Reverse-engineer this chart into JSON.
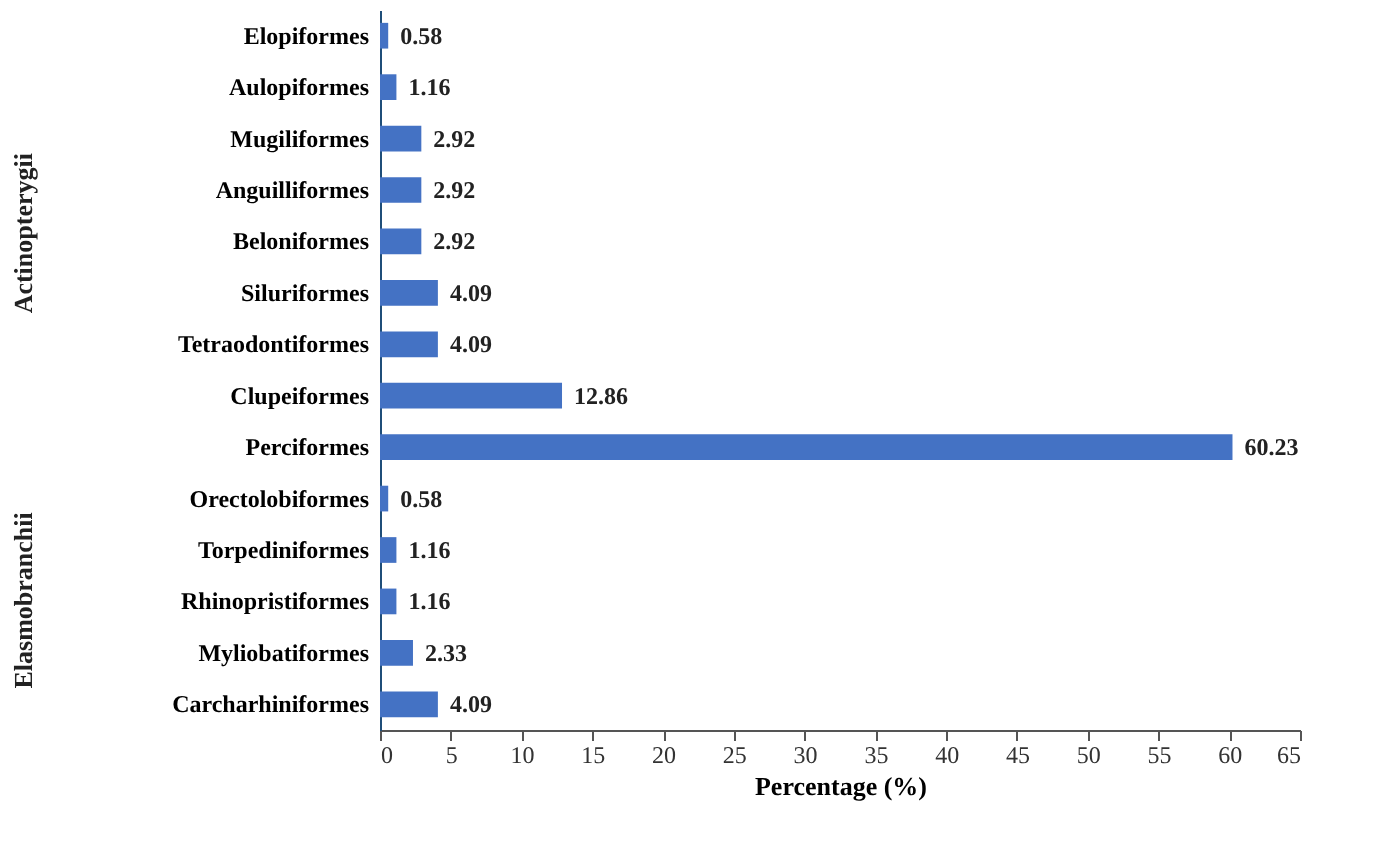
{
  "chart_data": {
    "type": "bar",
    "orientation": "horizontal",
    "xlabel": "Percentage (%)",
    "categories": [
      "Elopiformes",
      "Aulopiformes",
      "Mugiliformes",
      "Anguilliformes",
      "Beloniformes",
      "Siluriformes",
      "Tetraodontiformes",
      "Clupeiformes",
      "Perciformes",
      "Orectolobiformes",
      "Torpediniformes",
      "Rhinopristiformes",
      "Myliobatiformes",
      "Carcharhiniformes"
    ],
    "values": [
      0.58,
      1.16,
      2.92,
      2.92,
      2.92,
      4.09,
      4.09,
      12.86,
      60.23,
      0.58,
      1.16,
      1.16,
      2.33,
      4.09
    ],
    "color": "#4472c4",
    "xlim": [
      0,
      65
    ],
    "xticks": [
      0,
      5,
      10,
      15,
      20,
      25,
      30,
      35,
      40,
      45,
      50,
      55,
      60,
      65
    ],
    "data_labels": true,
    "grid": false,
    "annotations": [
      "Actinopterygii",
      "Elasmobranchii"
    ]
  }
}
